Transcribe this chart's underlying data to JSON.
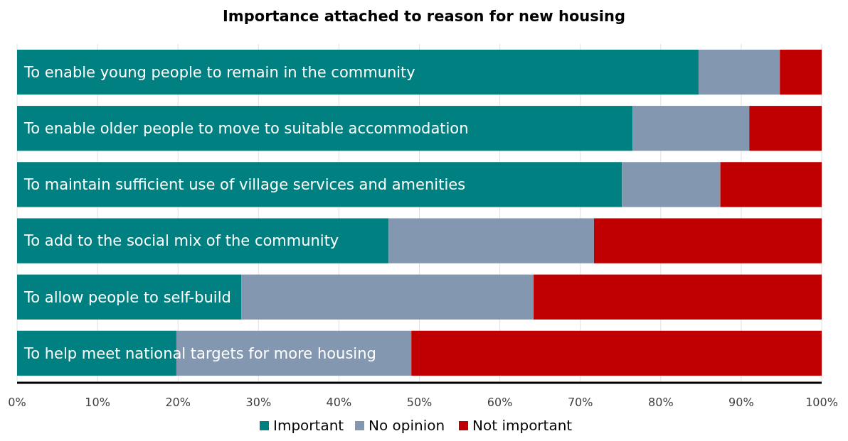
{
  "chart_data": {
    "type": "bar",
    "orientation": "horizontal",
    "stacked": true,
    "title": "Importance attached to reason for new housing",
    "categories": [
      "To enable young people to remain in the community",
      "To enable older people to move to suitable accommodation",
      "To maintain sufficient use of village services and amenities",
      "To add to the social mix of the community",
      "To allow people to self-build",
      "To help meet national targets for more housing"
    ],
    "series": [
      {
        "name": "Important",
        "color": "#008080",
        "values": [
          84.7,
          76.5,
          75.2,
          46.2,
          27.9,
          19.8
        ]
      },
      {
        "name": "No opinion",
        "color": "#8497b0",
        "values": [
          10.1,
          14.5,
          12.2,
          25.5,
          36.3,
          29.2
        ]
      },
      {
        "name": "Not important",
        "color": "#c00000",
        "values": [
          5.2,
          9.0,
          12.6,
          28.3,
          35.8,
          51.0
        ]
      }
    ],
    "xlim": [
      0,
      100
    ],
    "xticks": [
      {
        "value": 0,
        "label": "0%"
      },
      {
        "value": 10,
        "label": "10%"
      },
      {
        "value": 20,
        "label": "20%"
      },
      {
        "value": 30,
        "label": "30%"
      },
      {
        "value": 40,
        "label": "40%"
      },
      {
        "value": 50,
        "label": "50%"
      },
      {
        "value": 60,
        "label": "60%"
      },
      {
        "value": 70,
        "label": "70%"
      },
      {
        "value": 80,
        "label": "80%"
      },
      {
        "value": 90,
        "label": "90%"
      },
      {
        "value": 100,
        "label": "100%"
      }
    ],
    "grid": "x",
    "legend": "bottom"
  }
}
